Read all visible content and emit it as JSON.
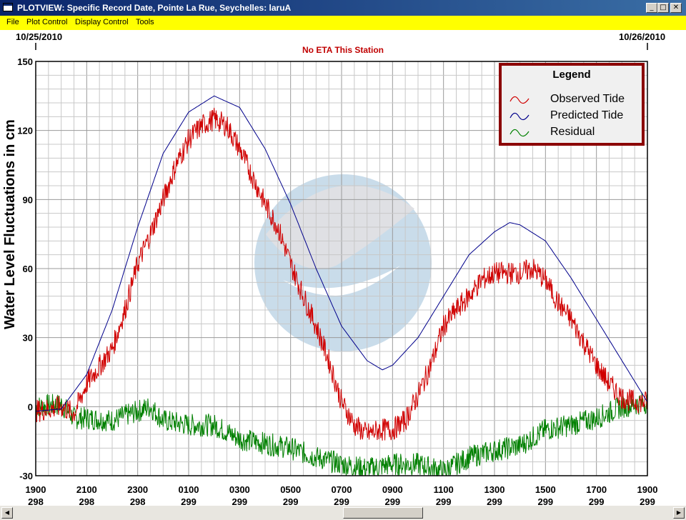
{
  "window": {
    "title": "PLOTVIEW: Specific Record Date, Pointe La Rue, Seychelles: laruA",
    "minimize_glyph": "_",
    "maximize_glyph": "□",
    "close_glyph": "✕"
  },
  "menu": [
    "File",
    "Plot Control",
    "Display Control",
    "Tools"
  ],
  "plot": {
    "start_date": "10/25/2010",
    "end_date": "10/26/2010",
    "subtitle": "No ETA This Station",
    "ylabel": "Water Level Fluctuations in cm"
  },
  "legend": {
    "title": "Legend",
    "items": [
      {
        "label": "Observed Tide",
        "color": "#d00000"
      },
      {
        "label": "Predicted Tide",
        "color": "#00008b"
      },
      {
        "label": "Residual",
        "color": "#008000"
      }
    ]
  },
  "colors": {
    "observed": "#d00000",
    "predicted": "#00008b",
    "residual": "#008000",
    "legend_border": "#8b0000",
    "menu_bar": "#ffff00",
    "watermark": "#c9dcea"
  },
  "chart_data": {
    "type": "line",
    "ylim": [
      -30,
      150
    ],
    "xlim": [
      0,
      24
    ],
    "yticks": [
      -30,
      0,
      30,
      60,
      90,
      120,
      150
    ],
    "xticks": [
      {
        "hour": "1900",
        "day": "298"
      },
      {
        "hour": "2100",
        "day": "298"
      },
      {
        "hour": "2300",
        "day": "298"
      },
      {
        "hour": "0100",
        "day": "299"
      },
      {
        "hour": "0300",
        "day": "299"
      },
      {
        "hour": "0500",
        "day": "299"
      },
      {
        "hour": "0700",
        "day": "299"
      },
      {
        "hour": "0900",
        "day": "299"
      },
      {
        "hour": "1100",
        "day": "299"
      },
      {
        "hour": "1300",
        "day": "299"
      },
      {
        "hour": "1500",
        "day": "299"
      },
      {
        "hour": "1700",
        "day": "299"
      },
      {
        "hour": "1900",
        "day": "299"
      }
    ],
    "grid": true,
    "legend_position": "top-right",
    "series": [
      {
        "name": "Predicted Tide",
        "color": "#00008b",
        "points": [
          [
            0,
            -2
          ],
          [
            1,
            -1
          ],
          [
            2,
            14
          ],
          [
            3,
            42
          ],
          [
            4,
            78
          ],
          [
            5,
            110
          ],
          [
            6,
            128
          ],
          [
            7,
            135
          ],
          [
            8,
            130
          ],
          [
            9,
            112
          ],
          [
            10,
            88
          ],
          [
            11,
            60
          ],
          [
            12,
            35
          ],
          [
            13,
            20
          ],
          [
            13.6,
            16
          ],
          [
            14,
            18
          ],
          [
            15,
            30
          ],
          [
            16,
            48
          ],
          [
            17,
            66
          ],
          [
            18,
            76
          ],
          [
            18.6,
            80
          ],
          [
            19,
            79
          ],
          [
            20,
            72
          ],
          [
            21,
            56
          ],
          [
            22,
            38
          ],
          [
            23,
            20
          ],
          [
            24,
            2
          ]
        ]
      },
      {
        "name": "Observed Tide",
        "color": "#d00000",
        "points": [
          [
            0,
            -2
          ],
          [
            1,
            0
          ],
          [
            1.5,
            -3
          ],
          [
            2,
            10
          ],
          [
            3,
            25
          ],
          [
            3.5,
            42
          ],
          [
            4,
            62
          ],
          [
            4.5,
            75
          ],
          [
            5,
            90
          ],
          [
            5.5,
            105
          ],
          [
            6,
            116
          ],
          [
            6.5,
            122
          ],
          [
            7,
            125
          ],
          [
            7.5,
            122
          ],
          [
            8,
            112
          ],
          [
            8.5,
            100
          ],
          [
            9,
            88
          ],
          [
            9.5,
            78
          ],
          [
            10,
            62
          ],
          [
            10.5,
            48
          ],
          [
            11,
            35
          ],
          [
            11.5,
            20
          ],
          [
            12,
            2
          ],
          [
            12.5,
            -8
          ],
          [
            13,
            -12
          ],
          [
            13.5,
            -10
          ],
          [
            14,
            -10
          ],
          [
            14.5,
            -6
          ],
          [
            15,
            5
          ],
          [
            15.5,
            18
          ],
          [
            16,
            35
          ],
          [
            16.5,
            42
          ],
          [
            17,
            48
          ],
          [
            17.5,
            55
          ],
          [
            18,
            58
          ],
          [
            18.5,
            58
          ],
          [
            19,
            58
          ],
          [
            19.5,
            60
          ],
          [
            20,
            55
          ],
          [
            20.5,
            45
          ],
          [
            21,
            38
          ],
          [
            21.5,
            28
          ],
          [
            22,
            18
          ],
          [
            22.5,
            10
          ],
          [
            23,
            4
          ],
          [
            23.5,
            2
          ],
          [
            24,
            2
          ]
        ]
      },
      {
        "name": "Residual",
        "color": "#008000",
        "points": [
          [
            0,
            0
          ],
          [
            1,
            1
          ],
          [
            1.5,
            -5
          ],
          [
            2,
            -5
          ],
          [
            3,
            -6
          ],
          [
            4,
            -2
          ],
          [
            4.5,
            0
          ],
          [
            5,
            -6
          ],
          [
            6,
            -8
          ],
          [
            7,
            -8
          ],
          [
            8,
            -14
          ],
          [
            9,
            -16
          ],
          [
            10,
            -18
          ],
          [
            11,
            -22
          ],
          [
            12,
            -25
          ],
          [
            13,
            -27
          ],
          [
            14,
            -25
          ],
          [
            15,
            -25
          ],
          [
            16,
            -28
          ],
          [
            17,
            -22
          ],
          [
            18,
            -19
          ],
          [
            19,
            -17
          ],
          [
            20,
            -10
          ],
          [
            21,
            -8
          ],
          [
            22,
            -5
          ],
          [
            23,
            0
          ],
          [
            24,
            2
          ]
        ]
      }
    ]
  }
}
